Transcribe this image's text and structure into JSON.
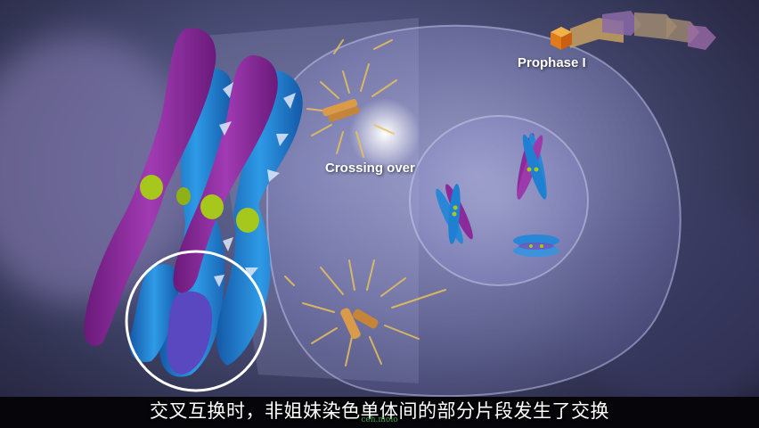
{
  "video": {
    "phase_label": "Prophase I",
    "process_label": "Crossing over",
    "subtitle": "交叉互换时，非姐妹染色单体间的部分片段发生了交换",
    "watermark": "ceh.moio"
  },
  "colors": {
    "chromatid_purple": "#8b2a9a",
    "chromatid_blue": "#1f7fd0",
    "centromere_green": "#a6c81c",
    "progress_arrow_orange": "#e07a1a",
    "cell_membrane": "#9fa0d8"
  },
  "progress": {
    "current_stage_index": 0,
    "stage_count": 5
  }
}
